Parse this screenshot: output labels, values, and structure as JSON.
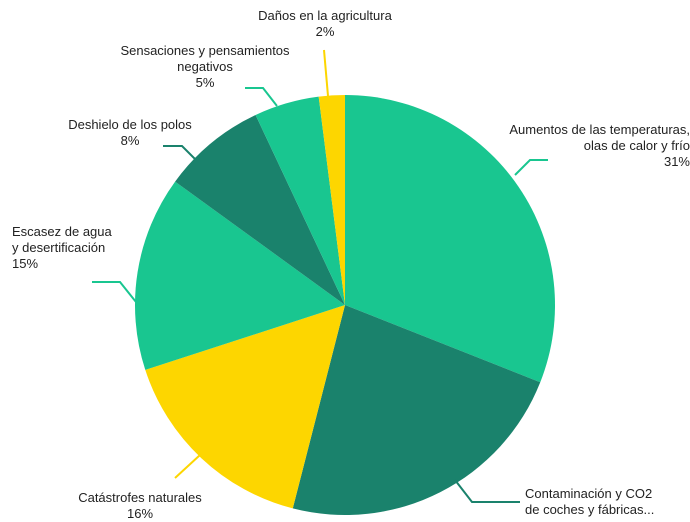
{
  "chart_data": {
    "type": "pie",
    "categories": [
      "Aumentos de las temperaturas,\nolas de calor y frío",
      "Contaminación y CO2\nde coches y fábricas...",
      "Catástrofes naturales",
      "Escasez de agua\ny desertificación",
      "Deshielo de los polos",
      "Sensaciones y pensamientos\nnegativos",
      "Daños en la agricultura"
    ],
    "values": [
      31,
      23,
      16,
      15,
      8,
      5,
      2
    ],
    "value_labels": [
      "31%",
      null,
      "16%",
      "15%",
      "8%",
      "5%",
      "2%"
    ],
    "colors": [
      "#19c690",
      "#1a826c",
      "#fdd600",
      "#19c690",
      "#1a826c",
      "#19c690",
      "#fdd600"
    ]
  }
}
